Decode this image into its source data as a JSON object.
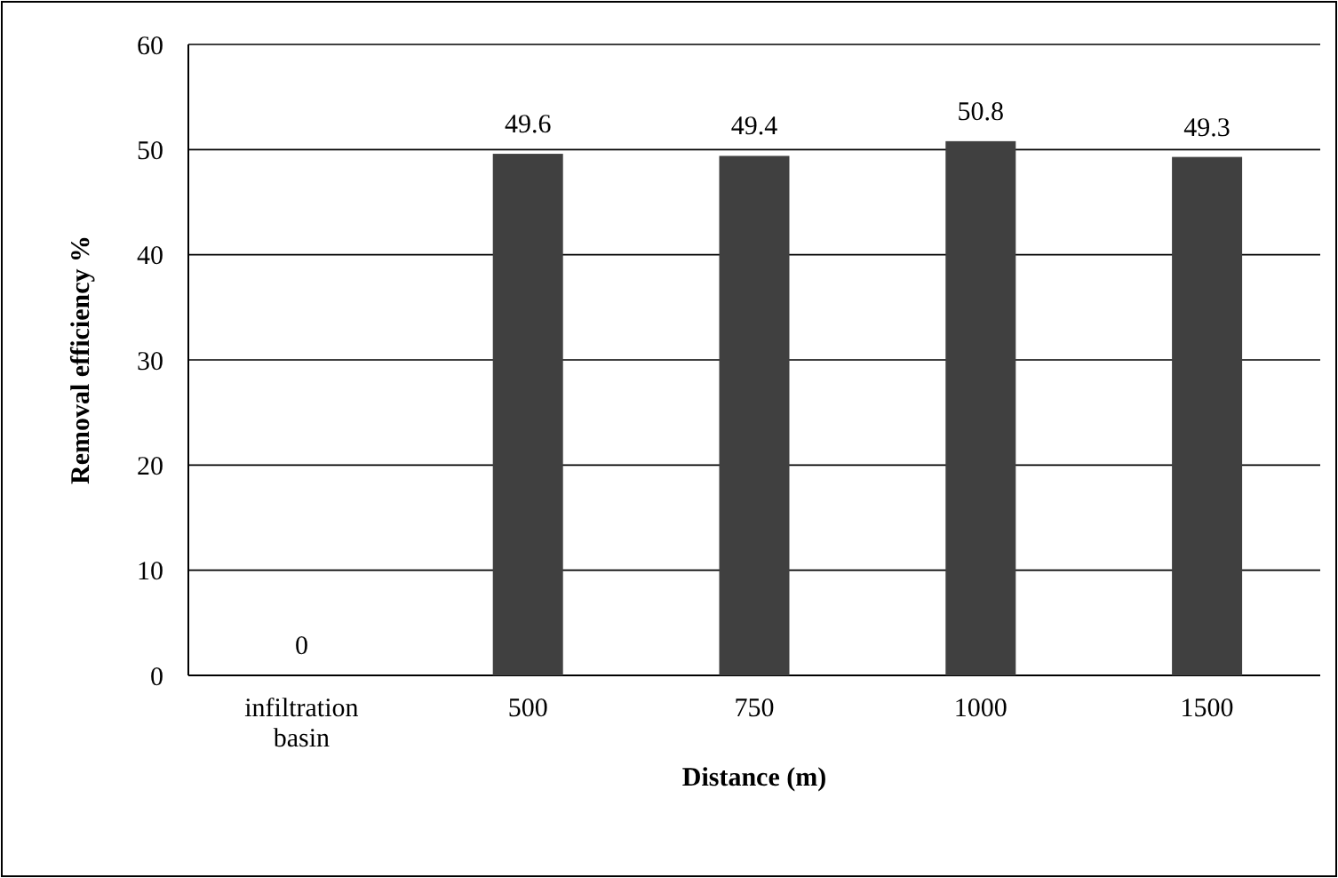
{
  "chart_data": {
    "type": "bar",
    "xlabel": "Distance (m)",
    "ylabel": "Removal efficiency %",
    "categories": [
      "infiltration basin",
      "500",
      "750",
      "1000",
      "1500"
    ],
    "values": [
      0,
      49.6,
      49.4,
      50.8,
      49.3
    ],
    "color": "#404040",
    "ylim": [
      0,
      60
    ],
    "yticks": [
      0,
      10,
      20,
      30,
      40,
      50,
      60
    ],
    "grid": "y",
    "data_labels": true
  }
}
